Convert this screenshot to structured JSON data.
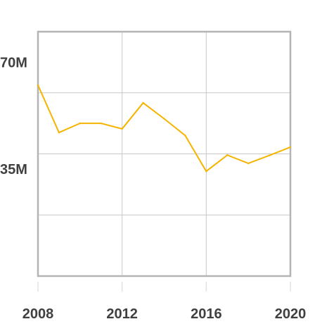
{
  "chart_data": {
    "type": "line",
    "title": "",
    "xlabel": "",
    "ylabel": "",
    "x": [
      2008,
      2009,
      2010,
      2011,
      2012,
      2013,
      2014,
      2015,
      2016,
      2017,
      2018,
      2019,
      2020
    ],
    "series": [
      {
        "values": [
          62.5,
          47.0,
          50.0,
          50.0,
          48.2,
          56.7,
          51.5,
          46.0,
          34.3,
          39.6,
          36.9,
          39.5,
          42.2
        ]
      }
    ],
    "xlim": [
      2008,
      2020
    ],
    "ylim": [
      0,
      80
    ],
    "x_ticks": [
      2008,
      2012,
      2016,
      2020
    ],
    "x_tick_labels": [
      "2008",
      "2012",
      "2016",
      "2020"
    ],
    "y_ticks": [
      0,
      20,
      40,
      60,
      80
    ],
    "y_tick_labels": [
      {
        "value": 70,
        "label": "70M"
      },
      {
        "value": 35,
        "label": "35M"
      }
    ],
    "grid": true,
    "legend": "none",
    "colors": {
      "line": "#f4b400",
      "grid": "#c8c8c8",
      "frame": "#b4b4b4",
      "tick_label": "#404040"
    }
  }
}
